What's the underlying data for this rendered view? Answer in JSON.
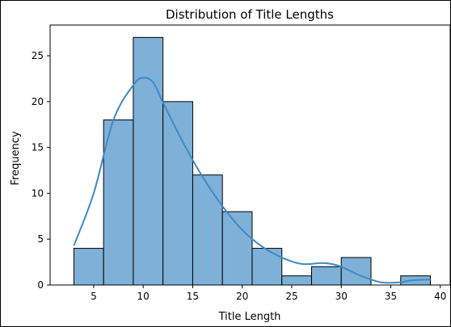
{
  "chart_data": {
    "type": "bar",
    "title": "Distribution of Title Lengths",
    "xlabel": "Title Length",
    "ylabel": "Frequency",
    "xlim": [
      0.6,
      41.0
    ],
    "ylim": [
      0,
      28.35
    ],
    "x_ticks": [
      5,
      10,
      15,
      20,
      25,
      30,
      35,
      40
    ],
    "y_ticks": [
      0,
      5,
      10,
      15,
      20,
      25
    ],
    "bins": [
      {
        "start": 3.0,
        "end": 6.0,
        "count": 4
      },
      {
        "start": 6.0,
        "end": 9.0,
        "count": 18
      },
      {
        "start": 9.0,
        "end": 12.0,
        "count": 27
      },
      {
        "start": 12.0,
        "end": 15.0,
        "count": 20
      },
      {
        "start": 15.0,
        "end": 18.0,
        "count": 12
      },
      {
        "start": 18.0,
        "end": 21.0,
        "count": 8
      },
      {
        "start": 21.0,
        "end": 24.0,
        "count": 4
      },
      {
        "start": 24.0,
        "end": 27.0,
        "count": 1
      },
      {
        "start": 27.0,
        "end": 30.0,
        "count": 2
      },
      {
        "start": 30.0,
        "end": 33.0,
        "count": 3
      },
      {
        "start": 33.0,
        "end": 36.0,
        "count": 0
      },
      {
        "start": 36.0,
        "end": 39.0,
        "count": 1
      }
    ],
    "kde": {
      "x": [
        3,
        5,
        7,
        9,
        10,
        11,
        12,
        14,
        16,
        18,
        20,
        22,
        24,
        26,
        28,
        29,
        30,
        32,
        34,
        36,
        37,
        39
      ],
      "y": [
        4.3,
        10.0,
        18.0,
        21.8,
        22.6,
        22.1,
        19.9,
        15.6,
        11.8,
        8.6,
        6.0,
        4.2,
        3.0,
        2.3,
        2.4,
        2.3,
        2.0,
        1.0,
        0.3,
        0.3,
        0.5,
        0.6
      ]
    },
    "grid": false,
    "bar_color": "#7fb1d8",
    "kde_color": "#3f8ac5"
  }
}
